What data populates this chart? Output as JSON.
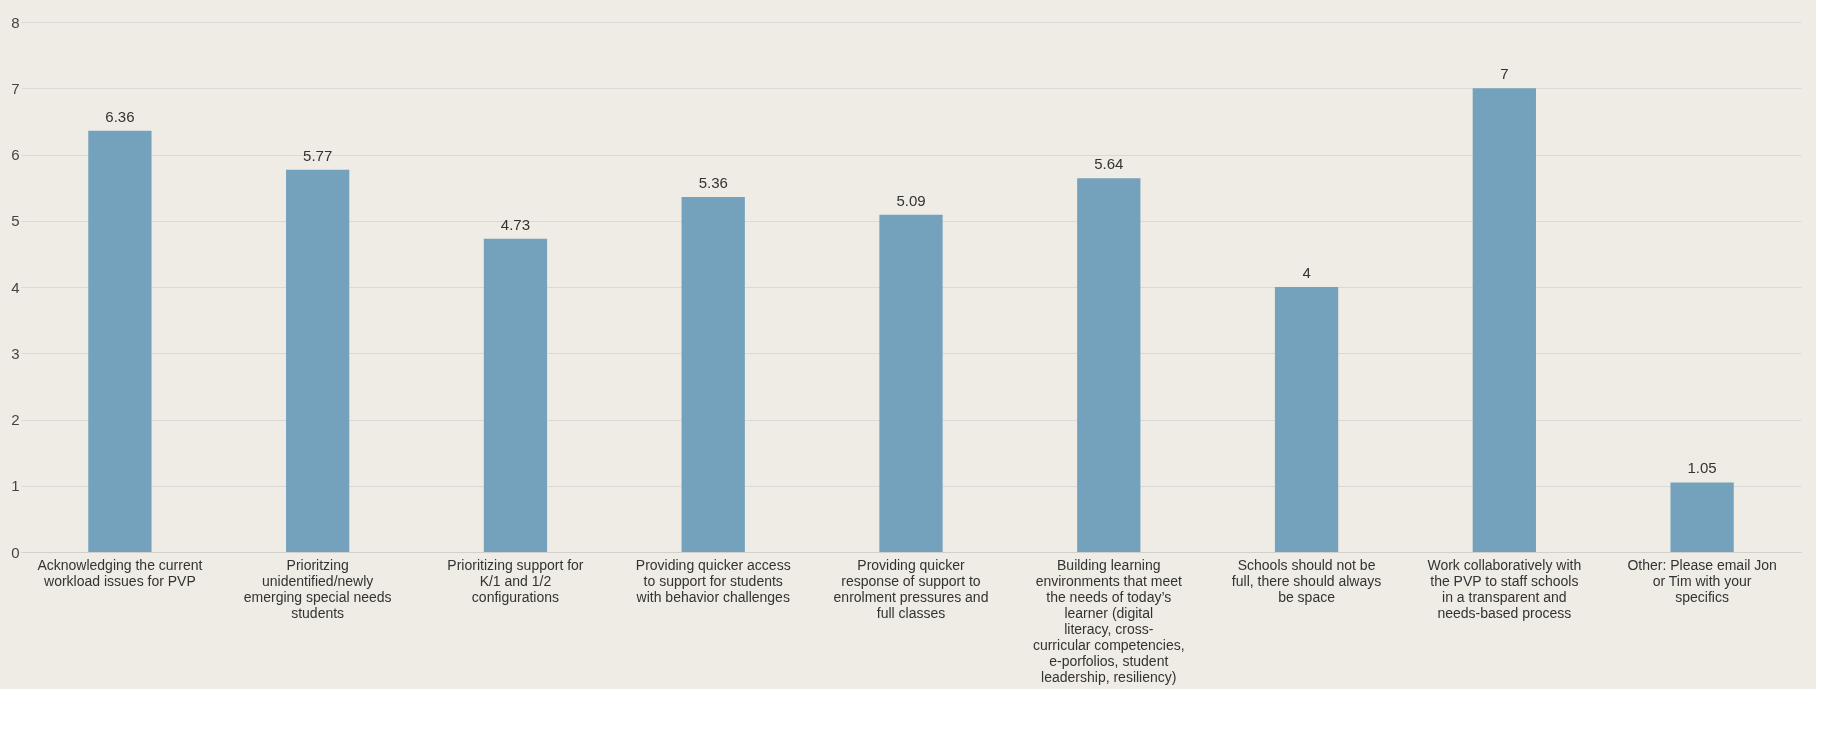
{
  "chart_data": {
    "type": "bar",
    "categories": [
      "Acknowledging the current workload issues for PVP",
      "Prioritzing unidentified/newly emerging special needs students",
      "Prioritizing support for K/1 and 1/2 configurations",
      "Providing quicker access to support for students with behavior challenges",
      "Providing quicker response of support to enrolment pressures and full classes",
      "Building learning environments that meet the needs of today’s learner (digital literacy, cross-curricular competencies, e-porfolios, student leadership, resiliency)",
      "Schools should not be full, there should always be space",
      "Work collaboratively with the PVP to staff schools in a transparent and needs-based process",
      "Other: Please email Jon or Tim with your specifics"
    ],
    "values": [
      6.36,
      5.77,
      4.73,
      5.36,
      5.09,
      5.64,
      4,
      7,
      1.05
    ],
    "color": "#74a2bc",
    "ylim": [
      0,
      8
    ],
    "yticks": [
      0,
      1,
      2,
      3,
      4,
      5,
      6,
      7,
      8
    ],
    "grid": "y",
    "data_labels": true
  }
}
